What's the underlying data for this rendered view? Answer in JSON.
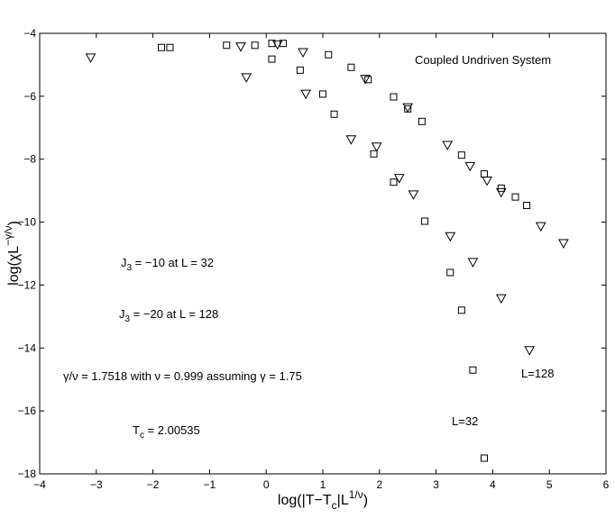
{
  "chart_data": {
    "type": "scatter",
    "title": "",
    "xlabel": {
      "pre": "log(|T−T",
      "sub": "c",
      "mid": "|L",
      "sup": "1/ν",
      "post": ")"
    },
    "ylabel": {
      "pre": "log(χL",
      "sup": "−γ/ν",
      "post": ")"
    },
    "xlim": [
      -4,
      6
    ],
    "ylim": [
      -18,
      -4
    ],
    "xticks": [
      "−4",
      "−3",
      "−2",
      "−1",
      "0",
      "1",
      "2",
      "3",
      "4",
      "5",
      "6"
    ],
    "yticks": [
      "−18",
      "−16",
      "−14",
      "−12",
      "−10",
      "−8",
      "−6",
      "−4"
    ],
    "grid": false,
    "annotations": {
      "system": "Coupled Undriven System",
      "j3_32": {
        "pre": "J",
        "sub": "3",
        "post": " = −10 at L = 32"
      },
      "j3_128": {
        "pre": "J",
        "sub": "3",
        "post": " = −20 at L = 128"
      },
      "gamma": "γ/ν = 1.7518 with ν = 0.999 assuming γ = 1.75",
      "tc": {
        "pre": "T",
        "sub": "c",
        "post": " = 2.00535"
      },
      "label_128": "L=128",
      "label_32": "L=32"
    },
    "series": [
      {
        "marker": "square",
        "points": [
          [
            -1.85,
            -4.45
          ],
          [
            -1.7,
            -4.45
          ],
          [
            -0.7,
            -4.38
          ],
          [
            -0.2,
            -4.38
          ],
          [
            0.1,
            -4.32
          ],
          [
            0.3,
            -4.32
          ],
          [
            0.1,
            -4.82
          ],
          [
            1.1,
            -4.68
          ],
          [
            0.6,
            -5.17
          ],
          [
            1.5,
            -5.08
          ],
          [
            1.8,
            -5.47
          ],
          [
            1.0,
            -5.93
          ],
          [
            2.25,
            -6.02
          ],
          [
            1.2,
            -6.57
          ],
          [
            2.5,
            -6.4
          ],
          [
            2.75,
            -6.8
          ],
          [
            1.9,
            -7.83
          ],
          [
            3.45,
            -7.87
          ],
          [
            3.85,
            -8.47
          ],
          [
            2.25,
            -8.73
          ],
          [
            4.15,
            -8.92
          ],
          [
            4.4,
            -9.2
          ],
          [
            4.6,
            -9.47
          ],
          [
            2.8,
            -9.97
          ],
          [
            3.25,
            -11.6
          ],
          [
            3.45,
            -12.8
          ],
          [
            3.65,
            -14.7
          ],
          [
            3.85,
            -17.5
          ]
        ]
      },
      {
        "marker": "triangle-down",
        "points": [
          [
            -3.1,
            -4.77
          ],
          [
            -0.45,
            -4.42
          ],
          [
            0.2,
            -4.35
          ],
          [
            0.65,
            -4.6
          ],
          [
            -0.35,
            -5.4
          ],
          [
            1.75,
            -5.45
          ],
          [
            0.7,
            -5.92
          ],
          [
            2.5,
            -6.35
          ],
          [
            1.5,
            -7.37
          ],
          [
            3.2,
            -7.55
          ],
          [
            1.95,
            -7.6
          ],
          [
            3.6,
            -8.22
          ],
          [
            2.35,
            -8.6
          ],
          [
            3.9,
            -8.68
          ],
          [
            4.15,
            -9.05
          ],
          [
            2.6,
            -9.12
          ],
          [
            4.85,
            -10.13
          ],
          [
            3.25,
            -10.45
          ],
          [
            5.25,
            -10.67
          ],
          [
            3.65,
            -11.27
          ],
          [
            4.15,
            -12.42
          ],
          [
            4.65,
            -14.07
          ]
        ]
      }
    ]
  }
}
